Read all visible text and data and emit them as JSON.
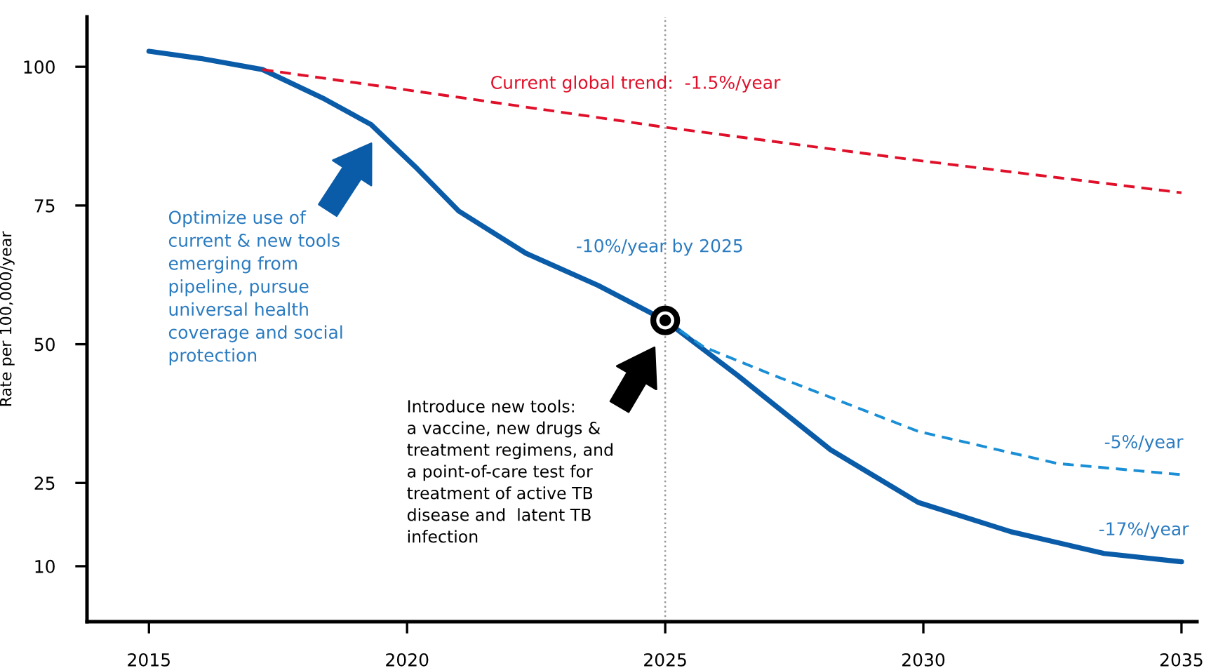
{
  "chart_data": {
    "type": "line",
    "ylabel": "Rate per 100,000/year",
    "xlim": [
      2013.8,
      2035.3
    ],
    "xticks": [
      2015,
      2020,
      2025,
      2030,
      2035
    ],
    "ylim": [
      0,
      109
    ],
    "yticks": [
      10,
      25,
      50,
      75,
      100
    ],
    "grid": false,
    "line_style": "solid",
    "series": [
      {
        "color": "#e0102a",
        "line_style": "dashed",
        "x": [
          2017.2,
          2021,
          2025,
          2030,
          2035
        ],
        "values": [
          99.5,
          94.5,
          89.1,
          83,
          77.3
        ]
      },
      {
        "color": "#1a8fd6",
        "line_style": "dashed",
        "x": [
          2025,
          2025.75,
          2027.1,
          2029.9,
          2032.6,
          2035
        ],
        "values": [
          54.3,
          49.5,
          44.4,
          34.3,
          28.5,
          26.5
        ]
      },
      {
        "color": "#0a5ca8",
        "x": [
          2015,
          2016,
          2017.2,
          2018.4,
          2019.3,
          2020.2,
          2021,
          2022.3,
          2023.7,
          2025,
          2026.4,
          2028.2,
          2029.9,
          2031.7,
          2033.5,
          2035
        ],
        "values": [
          102.8,
          101.5,
          99.5,
          94.2,
          89.6,
          81.6,
          74,
          66.4,
          60.6,
          54.3,
          44.4,
          31,
          21.5,
          16.2,
          12.3,
          10.8
        ]
      },
      {
        "type": "scatter",
        "color": "#000000",
        "x": [
          2025
        ],
        "values": [
          54.3
        ]
      }
    ],
    "ref_lines": [
      {
        "axis": "x",
        "value": 2025,
        "color": "#999999",
        "line_style": "dotted"
      }
    ],
    "annotations": [
      "Current global trend:  -1.5%/year",
      "-10%/year by 2025",
      "-5%/year",
      "-17%/year",
      "Optimize use of\ncurrent & new tools\nemerging from\npipeline, pursue\nuniversal health\ncoverage and social\nprotection",
      "Introduce new tools:\na vaccine, new drugs &\ntreatment regimens, and\na point-of-care test for\ntreatment of active TB\ndisease and  latent TB\ninfection"
    ]
  }
}
